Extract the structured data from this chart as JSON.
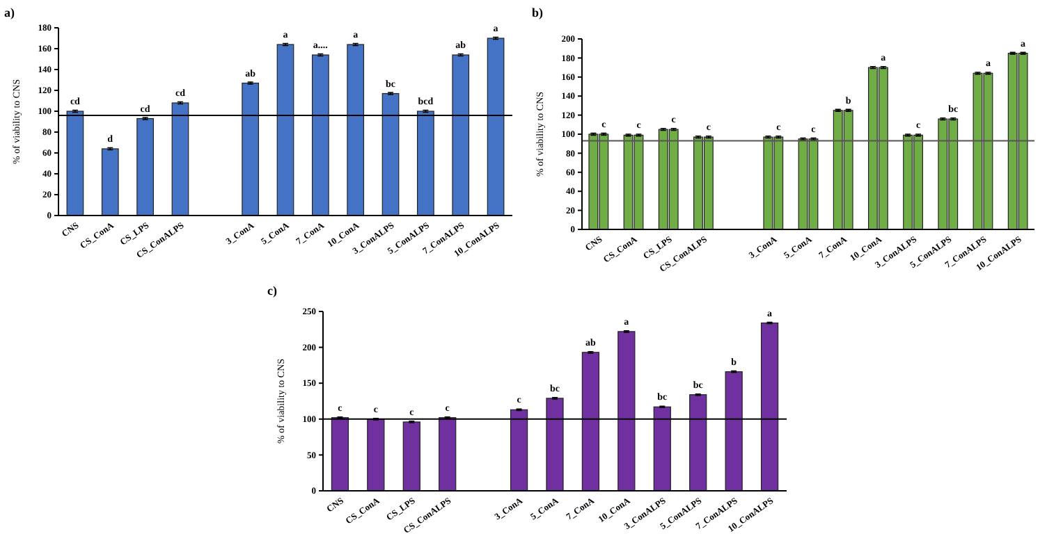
{
  "chart_data": [
    {
      "type": "bar",
      "title": "a)",
      "ylabel": "% of viability to CNS",
      "categories": [
        "CNS",
        "CS_ConA",
        "CS_LPS",
        "CS_ConALPS",
        null,
        "3_ConA",
        "5_ConA",
        "7_ConA",
        "10_ConA",
        "3_ConALPS",
        "5_ConALPS",
        "7_ConALPS",
        "10_ConALPS"
      ],
      "series": [
        {
          "color": "#4472c4",
          "values": [
            100,
            64,
            93,
            108,
            null,
            127,
            164,
            154,
            164,
            117,
            100,
            154,
            170
          ],
          "errors": [
            1,
            1,
            1,
            1,
            null,
            1,
            1,
            1,
            1,
            1,
            1,
            1,
            1
          ]
        }
      ],
      "ylim": [
        0,
        180
      ],
      "yticks": [
        0,
        20,
        40,
        60,
        80,
        100,
        120,
        140,
        160,
        180
      ],
      "grid": false,
      "ref_lines": [
        {
          "axis": "y",
          "value": 96,
          "color": "#000000"
        }
      ],
      "annotations": [
        {
          "text": "cd",
          "x": "CNS",
          "y": 100
        },
        {
          "text": "d",
          "x": "CS_ConA",
          "y": 64
        },
        {
          "text": "cd",
          "x": "CS_LPS",
          "y": 93
        },
        {
          "text": "cd",
          "x": "CS_ConALPS",
          "y": 108
        },
        {
          "text": "ab",
          "x": "3_ConA",
          "y": 127
        },
        {
          "text": "a",
          "x": "5_ConA",
          "y": 164
        },
        {
          "text": "a....",
          "x": "7_ConA",
          "y": 154
        },
        {
          "text": "a",
          "x": "10_ConA",
          "y": 164
        },
        {
          "text": "bc",
          "x": "3_ConALPS",
          "y": 117
        },
        {
          "text": "bcd",
          "x": "5_ConALPS",
          "y": 100
        },
        {
          "text": "ab",
          "x": "7_ConALPS",
          "y": 154
        },
        {
          "text": "a",
          "x": "10_ConALPS",
          "y": 170
        }
      ]
    },
    {
      "type": "bar",
      "title": "b)",
      "ylabel": "% of viability to CNS",
      "categories": [
        "CNS",
        "CS_ConA",
        "CS_LPS",
        "CS_ConALPS",
        null,
        "3_ConA",
        "5_ConA",
        "7_ConA",
        "10_ConA",
        "3_ConALPS",
        "5_ConALPS",
        "7_ConALPS",
        "10_ConALPS"
      ],
      "series": [
        {
          "color": "#70ad47",
          "values": [
            100,
            99,
            105,
            97,
            null,
            97,
            95,
            125,
            170,
            99,
            116,
            164,
            185
          ],
          "errors": [
            1,
            1,
            1,
            1,
            null,
            1,
            1,
            1,
            1,
            1,
            1,
            1,
            1
          ]
        },
        {
          "color": "#70ad47",
          "values": [
            100,
            99,
            105,
            97,
            null,
            97,
            95,
            125,
            170,
            99,
            116,
            164,
            185
          ],
          "errors": [
            1,
            1,
            1,
            1,
            null,
            1,
            1,
            1,
            1,
            1,
            1,
            1,
            1
          ]
        }
      ],
      "ylim": [
        0,
        200
      ],
      "yticks": [
        0,
        20,
        40,
        60,
        80,
        100,
        120,
        140,
        160,
        180,
        200
      ],
      "grid": false,
      "ref_lines": [
        {
          "axis": "y",
          "value": 93,
          "color": "#555555"
        }
      ],
      "annotations": [
        {
          "text": "c",
          "x": "CNS",
          "y": 100
        },
        {
          "text": "c",
          "x": "CS_ConA",
          "y": 99
        },
        {
          "text": "c",
          "x": "CS_LPS",
          "y": 105
        },
        {
          "text": "c",
          "x": "CS_ConALPS",
          "y": 97
        },
        {
          "text": "c",
          "x": "3_ConA",
          "y": 97
        },
        {
          "text": "c",
          "x": "5_ConA",
          "y": 95
        },
        {
          "text": "b",
          "x": "7_ConA",
          "y": 125
        },
        {
          "text": "a",
          "x": "10_ConA",
          "y": 170
        },
        {
          "text": "c",
          "x": "3_ConALPS",
          "y": 99
        },
        {
          "text": "bc",
          "x": "5_ConALPS",
          "y": 116
        },
        {
          "text": "a",
          "x": "7_ConALPS",
          "y": 164
        },
        {
          "text": "a",
          "x": "10_ConALPS",
          "y": 185
        }
      ]
    },
    {
      "type": "bar",
      "title": "c)",
      "ylabel": "% of viability to CNS",
      "categories": [
        "CNS",
        "CS_ConA",
        "CS_LPS",
        "CS_ConALPS",
        null,
        "3_ConA",
        "5_ConA",
        "7_ConA",
        "10_ConA",
        "3_ConALPS",
        "5_ConALPS",
        "7_ConALPS",
        "10_ConALPS"
      ],
      "series": [
        {
          "color": "#7030a0",
          "values": [
            102,
            100,
            96,
            102,
            null,
            113,
            129,
            193,
            222,
            117,
            134,
            166,
            234
          ],
          "errors": [
            1,
            1,
            1,
            1,
            null,
            1,
            1,
            1,
            1,
            1,
            1,
            1,
            1
          ]
        }
      ],
      "ylim": [
        0,
        250
      ],
      "yticks": [
        0,
        50,
        100,
        150,
        200,
        250
      ],
      "grid": false,
      "ref_lines": [
        {
          "axis": "y",
          "value": 100,
          "color": "#000000"
        }
      ],
      "annotations": [
        {
          "text": "c",
          "x": "CNS",
          "y": 102
        },
        {
          "text": "c",
          "x": "CS_ConA",
          "y": 100
        },
        {
          "text": "c",
          "x": "CS_LPS",
          "y": 96
        },
        {
          "text": "c",
          "x": "CS_ConALPS",
          "y": 102
        },
        {
          "text": "c",
          "x": "3_ConA",
          "y": 113
        },
        {
          "text": "bc",
          "x": "5_ConA",
          "y": 129
        },
        {
          "text": "ab",
          "x": "7_ConA",
          "y": 193
        },
        {
          "text": "a",
          "x": "10_ConA",
          "y": 222
        },
        {
          "text": "bc",
          "x": "3_ConALPS",
          "y": 117
        },
        {
          "text": "bc",
          "x": "5_ConALPS",
          "y": 134
        },
        {
          "text": "b",
          "x": "7_ConALPS",
          "y": 166
        },
        {
          "text": "a",
          "x": "10_ConALPS",
          "y": 234
        }
      ]
    }
  ]
}
